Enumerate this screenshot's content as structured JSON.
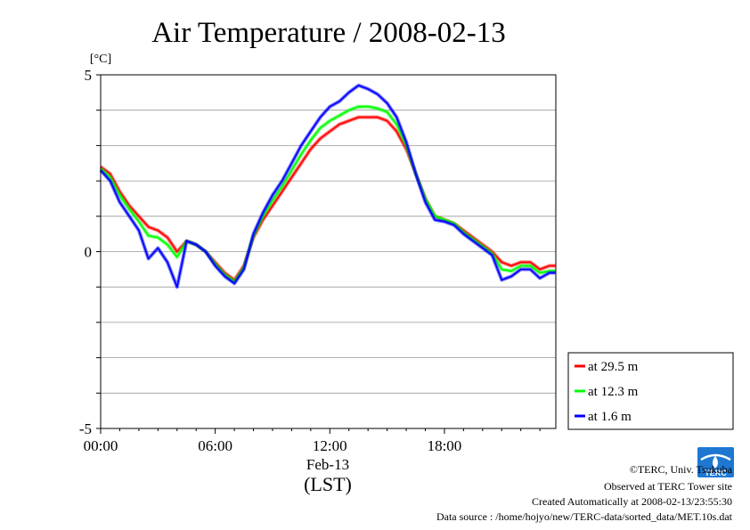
{
  "chart_data": {
    "type": "line",
    "title": "Air Temperature / 2008-02-13",
    "ylabel": "[°C]",
    "ylim": [
      -5,
      5
    ],
    "y_ticks": [
      {
        "value": 5,
        "label": "5"
      },
      {
        "value": 0,
        "label": "0"
      },
      {
        "value": -5,
        "label": "-5"
      }
    ],
    "xlim": [
      0,
      23.833
    ],
    "x_ticks": [
      {
        "hour": 0,
        "label": "00:00"
      },
      {
        "hour": 6,
        "label": "06:00"
      },
      {
        "hour": 12,
        "label": "12:00"
      },
      {
        "hour": 18,
        "label": "18:00"
      }
    ],
    "date_label": "Feb-13",
    "xlabel": "(LST)",
    "grid": true,
    "legend_position": "right-bottom",
    "series": [
      {
        "name": "at 29.5 m",
        "color": "#ff0000",
        "x": [
          0,
          0.5,
          1,
          1.5,
          2,
          2.5,
          3,
          3.5,
          4,
          4.5,
          5,
          5.5,
          6,
          6.5,
          7,
          7.5,
          8,
          8.5,
          9,
          9.5,
          10,
          10.5,
          11,
          11.5,
          12,
          12.5,
          13,
          13.5,
          14,
          14.5,
          15,
          15.5,
          16,
          16.5,
          17,
          17.5,
          18,
          18.5,
          19,
          19.5,
          20,
          20.5,
          21,
          21.5,
          22,
          22.5,
          23,
          23.5,
          23.8
        ],
        "y": [
          2.4,
          2.2,
          1.7,
          1.3,
          1.0,
          0.7,
          0.6,
          0.4,
          0.0,
          0.3,
          0.2,
          0.0,
          -0.3,
          -0.6,
          -0.8,
          -0.4,
          0.4,
          0.9,
          1.3,
          1.7,
          2.1,
          2.5,
          2.9,
          3.2,
          3.4,
          3.6,
          3.7,
          3.8,
          3.8,
          3.8,
          3.7,
          3.4,
          2.9,
          2.2,
          1.5,
          1.0,
          0.9,
          0.8,
          0.6,
          0.4,
          0.2,
          0.0,
          -0.3,
          -0.4,
          -0.3,
          -0.3,
          -0.5,
          -0.4,
          -0.4
        ]
      },
      {
        "name": "at 12.3 m",
        "color": "#00ff00",
        "x": [
          0,
          0.5,
          1,
          1.5,
          2,
          2.5,
          3,
          3.5,
          4,
          4.5,
          5,
          5.5,
          6,
          6.5,
          7,
          7.5,
          8,
          8.5,
          9,
          9.5,
          10,
          10.5,
          11,
          11.5,
          12,
          12.5,
          13,
          13.5,
          14,
          14.5,
          15,
          15.5,
          16,
          16.5,
          17,
          17.5,
          18,
          18.5,
          19,
          19.5,
          20,
          20.5,
          21,
          21.5,
          22,
          22.5,
          23,
          23.5,
          23.8
        ],
        "y": [
          2.35,
          2.1,
          1.6,
          1.2,
          0.85,
          0.45,
          0.4,
          0.2,
          -0.15,
          0.3,
          0.2,
          0.0,
          -0.35,
          -0.65,
          -0.85,
          -0.45,
          0.45,
          1.0,
          1.45,
          1.85,
          2.3,
          2.75,
          3.15,
          3.5,
          3.7,
          3.85,
          4.0,
          4.1,
          4.1,
          4.05,
          3.95,
          3.6,
          3.0,
          2.2,
          1.5,
          1.0,
          0.9,
          0.8,
          0.55,
          0.35,
          0.15,
          -0.05,
          -0.5,
          -0.55,
          -0.4,
          -0.4,
          -0.6,
          -0.55,
          -0.55
        ]
      },
      {
        "name": "at 1.6 m",
        "color": "#0000ff",
        "x": [
          0,
          0.5,
          1,
          1.5,
          2,
          2.5,
          3,
          3.5,
          4,
          4.5,
          5,
          5.5,
          6,
          6.5,
          7,
          7.5,
          8,
          8.5,
          9,
          9.5,
          10,
          10.5,
          11,
          11.5,
          12,
          12.5,
          13,
          13.5,
          14,
          14.5,
          15,
          15.5,
          16,
          16.5,
          17,
          17.5,
          18,
          18.5,
          19,
          19.5,
          20,
          20.5,
          21,
          21.5,
          22,
          22.5,
          23,
          23.5,
          23.8
        ],
        "y": [
          2.3,
          2.0,
          1.4,
          1.0,
          0.6,
          -0.2,
          0.1,
          -0.3,
          -1.0,
          0.3,
          0.2,
          0.0,
          -0.4,
          -0.7,
          -0.9,
          -0.5,
          0.5,
          1.1,
          1.6,
          2.0,
          2.5,
          3.0,
          3.4,
          3.8,
          4.1,
          4.25,
          4.5,
          4.7,
          4.6,
          4.45,
          4.2,
          3.8,
          3.1,
          2.2,
          1.4,
          0.9,
          0.85,
          0.75,
          0.5,
          0.3,
          0.1,
          -0.1,
          -0.8,
          -0.7,
          -0.5,
          -0.5,
          -0.75,
          -0.6,
          -0.6
        ]
      }
    ]
  },
  "footer": {
    "copyright": "©TERC, Univ. Tsukuba",
    "observed": "Observed at TERC Tower site",
    "created": "Created Automatically at 2008-02-13/23:55:30",
    "source": "Data source : /home/hojyo/new/TERC-data/sorted_data/MET.10s.dat"
  },
  "logo": {
    "text": "TERC",
    "color": "#1e78d2"
  }
}
